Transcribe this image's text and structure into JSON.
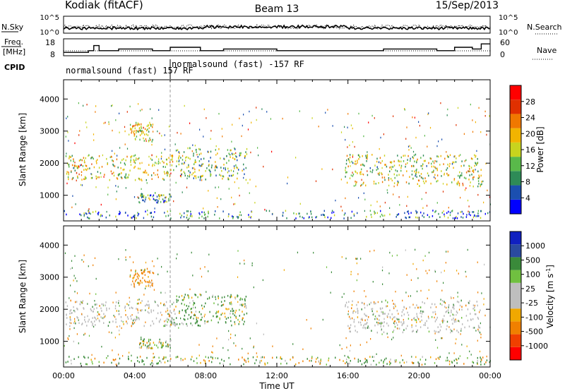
{
  "header": {
    "station": "Kodiak (fitACF)",
    "beam": "Beam 13",
    "date": "15/Sep/2013"
  },
  "noise_panel": {
    "left_label": "N.Sky",
    "right_label": "N.Search",
    "left_ticks": [
      "10^5",
      "10^0"
    ],
    "right_ticks": [
      "10^5",
      "10^0"
    ]
  },
  "freq_panel": {
    "left_label_1": "Freq.",
    "left_label_2": "[MHz]",
    "right_label": "Nave",
    "left_ticks": [
      "18",
      "8"
    ],
    "right_ticks": [
      "60",
      "0"
    ],
    "freq_mhz_steps": [
      [
        0,
        10
      ],
      [
        1.4,
        11
      ],
      [
        1.7,
        14
      ],
      [
        2,
        11
      ],
      [
        3,
        11
      ],
      [
        3.1,
        12
      ],
      [
        4,
        12
      ],
      [
        5,
        11
      ],
      [
        6,
        13
      ],
      [
        7,
        13
      ],
      [
        7.7,
        11
      ],
      [
        9,
        12
      ],
      [
        10,
        12
      ],
      [
        12,
        11
      ],
      [
        16,
        11
      ],
      [
        18,
        12
      ],
      [
        21,
        11
      ],
      [
        22,
        13
      ],
      [
        23,
        12
      ],
      [
        23.5,
        15
      ],
      [
        24,
        15
      ]
    ]
  },
  "cpid": {
    "label": "CPID",
    "programs": [
      {
        "name": "normalsound (fast) 157 RF",
        "start_h": 0
      },
      {
        "name": "normalsound (fast) -157 RF",
        "start_h": 6
      }
    ]
  },
  "colors": {
    "power_scale": [
      "#0000ff",
      "#1b4fb0",
      "#2e8b57",
      "#59b94a",
      "#c8d41e",
      "#f2b400",
      "#f07800",
      "#e03000",
      "#ff0000"
    ],
    "velocity_scale": [
      "#ff0000",
      "#f04000",
      "#f08000",
      "#f0a800",
      "#bebebe",
      "#bebebe",
      "#70c040",
      "#3a8a3a",
      "#2a4aa0",
      "#1020c0"
    ],
    "ground_scatter": "#b8b8b8"
  },
  "chart_data": [
    {
      "type": "heatmap",
      "title": "Power",
      "xlabel": "",
      "ylabel": "Slant Range [km]",
      "xlim_hours": [
        0,
        24
      ],
      "ylim_km": [
        200,
        4600
      ],
      "x_ticks": [
        "00:00",
        "04:00",
        "08:00",
        "12:00",
        "16:00",
        "20:00",
        "00:00"
      ],
      "y_ticks": [
        "1000",
        "2000",
        "3000",
        "4000"
      ],
      "colorbar": {
        "label": "Power [dB]",
        "ticks": [
          "4",
          "8",
          "12",
          "16",
          "20",
          "24",
          "28"
        ],
        "range": [
          0,
          30
        ]
      },
      "scatter_regions": [
        {
          "t0": 0.1,
          "t1": 6.3,
          "r0": 1500,
          "r1": 2300,
          "mean_db": 16
        },
        {
          "t0": 6.3,
          "t1": 10.3,
          "r0": 1500,
          "r1": 2500,
          "mean_db": 12
        },
        {
          "t0": 3.7,
          "t1": 5.0,
          "r0": 2700,
          "r1": 3300,
          "mean_db": 16
        },
        {
          "t0": 4.2,
          "t1": 6.0,
          "r0": 800,
          "r1": 1100,
          "mean_db": 10
        },
        {
          "t0": 15.8,
          "t1": 23.5,
          "r0": 1300,
          "r1": 2300,
          "mean_db": 14
        },
        {
          "t0": 0,
          "t1": 24,
          "r0": 300,
          "r1": 550,
          "mean_db": 8
        }
      ]
    },
    {
      "type": "heatmap",
      "title": "Velocity",
      "xlabel": "Time UT",
      "ylabel": "Slant Range [km]",
      "xlim_hours": [
        0,
        24
      ],
      "ylim_km": [
        200,
        4600
      ],
      "x_ticks": [
        "00:00",
        "04:00",
        "08:00",
        "12:00",
        "16:00",
        "20:00",
        "00:00"
      ],
      "y_ticks": [
        "1000",
        "2000",
        "3000",
        "4000"
      ],
      "colorbar": {
        "label": "Velocity [m s^-1]",
        "ticks": [
          "1000",
          "500",
          "100",
          "25",
          "-25",
          "-100",
          "-500",
          "-1000"
        ]
      },
      "scatter_regions": [
        {
          "t0": 0.1,
          "t1": 6.3,
          "r0": 1500,
          "r1": 2300,
          "mean_v": 0
        },
        {
          "t0": 6.3,
          "t1": 10.3,
          "r0": 1500,
          "r1": 2500,
          "mean_v": 150
        },
        {
          "t0": 3.7,
          "t1": 5.0,
          "r0": 2700,
          "r1": 3300,
          "mean_v": -200
        },
        {
          "t0": 4.2,
          "t1": 6.0,
          "r0": 800,
          "r1": 1100,
          "mean_v": 120
        },
        {
          "t0": 15.8,
          "t1": 23.5,
          "r0": 1300,
          "r1": 2300,
          "mean_v": 0
        },
        {
          "t0": 0,
          "t1": 24,
          "r0": 300,
          "r1": 550,
          "mean_v": 60
        }
      ]
    }
  ]
}
